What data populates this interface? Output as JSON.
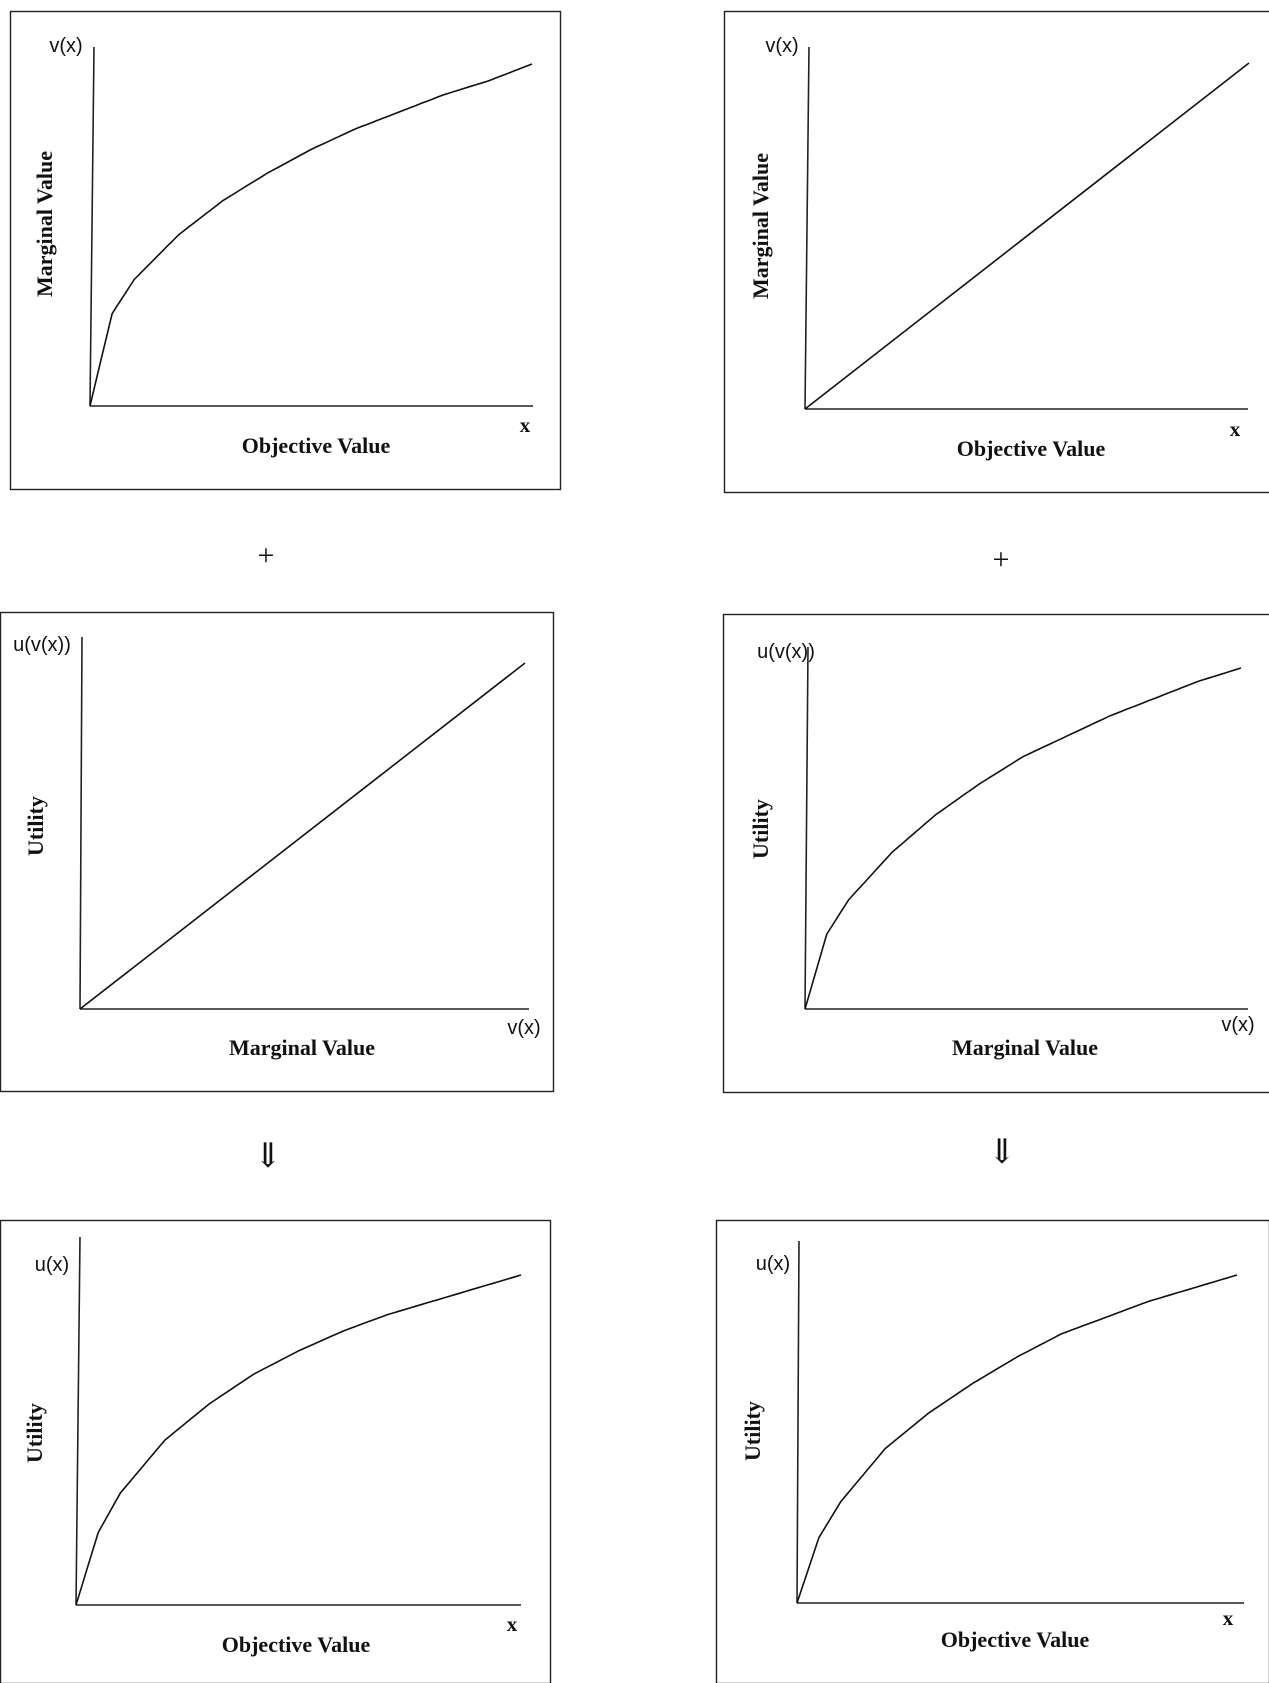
{
  "connectors": {
    "plus": "+",
    "implies": "⇓"
  },
  "chart_data": [
    {
      "type": "line",
      "x_end_label": "x",
      "y_end_label": "v(x)",
      "xlabel": "Objective Value",
      "ylabel": "Marginal Value",
      "xlim": [
        0,
        1
      ],
      "ylim": [
        0,
        1
      ],
      "grid": false,
      "series": [
        {
          "shape": "concave",
          "x": [
            0,
            0.05,
            0.1,
            0.2,
            0.3,
            0.4,
            0.5,
            0.6,
            0.7,
            0.8,
            0.9,
            1.0
          ],
          "y": [
            0,
            0.27,
            0.37,
            0.5,
            0.6,
            0.68,
            0.75,
            0.81,
            0.86,
            0.91,
            0.95,
            1.0
          ]
        }
      ]
    },
    {
      "type": "line",
      "x_end_label": "x",
      "y_end_label": "v(x)",
      "xlabel": "Objective Value",
      "ylabel": "Marginal Value",
      "xlim": [
        0,
        1
      ],
      "ylim": [
        0,
        1
      ],
      "grid": false,
      "series": [
        {
          "shape": "linear",
          "x": [
            0,
            1
          ],
          "y": [
            0,
            1
          ]
        }
      ]
    },
    {
      "type": "line",
      "x_end_label": "v(x)",
      "y_end_label": "u(v(x))",
      "xlabel": "Marginal Value",
      "ylabel": "Utility",
      "xlim": [
        0,
        1
      ],
      "ylim": [
        0,
        1
      ],
      "grid": false,
      "series": [
        {
          "shape": "linear",
          "x": [
            0,
            1
          ],
          "y": [
            0,
            1
          ]
        }
      ]
    },
    {
      "type": "line",
      "x_end_label": "v(x)",
      "y_end_label": "u(v(x))",
      "xlabel": "Marginal Value",
      "ylabel": "Utility",
      "xlim": [
        0,
        1
      ],
      "ylim": [
        0,
        1
      ],
      "grid": false,
      "series": [
        {
          "shape": "concave",
          "x": [
            0,
            0.05,
            0.1,
            0.2,
            0.3,
            0.4,
            0.5,
            0.6,
            0.7,
            0.8,
            0.9,
            1.0
          ],
          "y": [
            0,
            0.22,
            0.32,
            0.46,
            0.57,
            0.66,
            0.74,
            0.8,
            0.86,
            0.91,
            0.96,
            1.0
          ]
        }
      ]
    },
    {
      "type": "line",
      "x_end_label": "x",
      "y_end_label": "u(x)",
      "xlabel": "Objective Value",
      "ylabel": "Utility",
      "xlim": [
        0,
        1
      ],
      "ylim": [
        0,
        1
      ],
      "grid": false,
      "series": [
        {
          "shape": "concave",
          "x": [
            0,
            0.05,
            0.1,
            0.2,
            0.3,
            0.4,
            0.5,
            0.6,
            0.7,
            0.8,
            0.9,
            1.0
          ],
          "y": [
            0,
            0.22,
            0.34,
            0.5,
            0.61,
            0.7,
            0.77,
            0.83,
            0.88,
            0.92,
            0.96,
            1.0
          ]
        }
      ]
    },
    {
      "type": "line",
      "x_end_label": "x",
      "y_end_label": "u(x)",
      "xlabel": "Objective Value",
      "ylabel": "Utility",
      "xlim": [
        0,
        1
      ],
      "ylim": [
        0,
        1
      ],
      "grid": false,
      "series": [
        {
          "shape": "concave",
          "x": [
            0,
            0.05,
            0.1,
            0.2,
            0.3,
            0.4,
            0.5,
            0.6,
            0.7,
            0.8,
            0.9,
            1.0
          ],
          "y": [
            0,
            0.2,
            0.31,
            0.47,
            0.58,
            0.67,
            0.75,
            0.82,
            0.87,
            0.92,
            0.96,
            1.0
          ]
        }
      ]
    }
  ]
}
